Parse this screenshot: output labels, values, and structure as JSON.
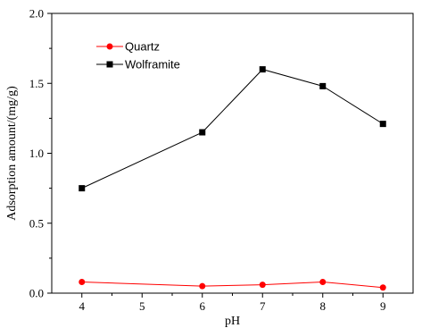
{
  "chart_data": {
    "type": "line",
    "title": "",
    "xlabel": "pH",
    "ylabel": "Adsorption amount/(mg/g)",
    "xlim": [
      3.5,
      9.5
    ],
    "ylim": [
      0.0,
      2.0
    ],
    "xticks": [
      4,
      5,
      6,
      7,
      8,
      9
    ],
    "xtick_labels": [
      "4",
      "5",
      "6",
      "7",
      "8",
      "9"
    ],
    "yticks": [
      0.0,
      0.5,
      1.0,
      1.5,
      2.0
    ],
    "ytick_labels": [
      "0.0",
      "0.5",
      "1.0",
      "1.5",
      "2.0"
    ],
    "grid": false,
    "legend_position": "top-left",
    "series": [
      {
        "name": "Quartz",
        "color": "#ff0000",
        "marker": "circle",
        "x": [
          4,
          6,
          7,
          8,
          9
        ],
        "y": [
          0.08,
          0.05,
          0.06,
          0.08,
          0.04
        ]
      },
      {
        "name": "Wolframite",
        "color": "#000000",
        "marker": "square",
        "x": [
          4,
          6,
          7,
          8,
          9
        ],
        "y": [
          0.75,
          1.15,
          1.6,
          1.48,
          1.21
        ]
      }
    ]
  }
}
